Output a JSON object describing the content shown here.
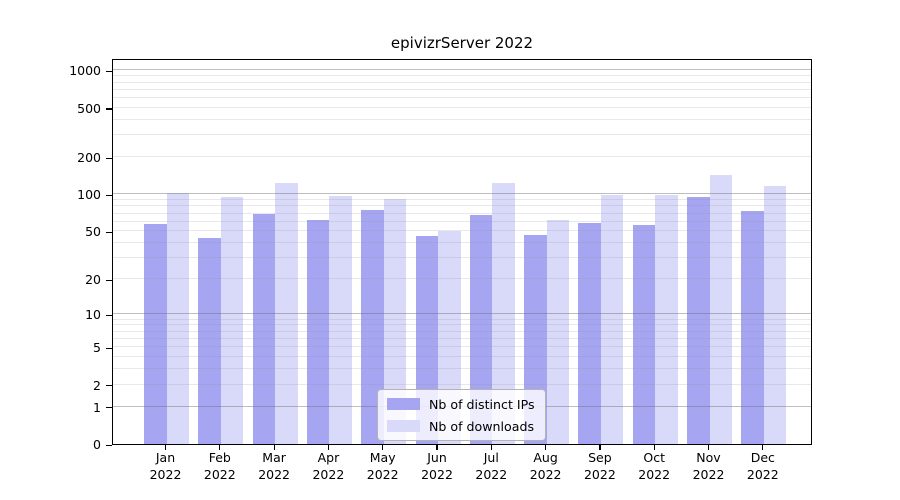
{
  "title": "epivizrServer 2022",
  "chart_data": {
    "type": "bar",
    "title": "epivizrServer 2022",
    "xlabel": "",
    "ylabel": "",
    "yscale": "log10(value+1)",
    "yticks": [
      0,
      1,
      2,
      5,
      10,
      20,
      50,
      100,
      200,
      500,
      1000
    ],
    "ylim": [
      0,
      1260
    ],
    "grid": "horizontal, major decades darker + log minors lighter, drawn over bars",
    "legend_position": "lower center inside plot",
    "year": "2022",
    "categories": [
      "Jan 2022",
      "Feb 2022",
      "Mar 2022",
      "Apr 2022",
      "May 2022",
      "Jun 2022",
      "Jul 2022",
      "Aug 2022",
      "Sep 2022",
      "Oct 2022",
      "Nov 2022",
      "Dec 2022"
    ],
    "months": [
      {
        "month": "Jan",
        "year": "2022"
      },
      {
        "month": "Feb",
        "year": "2022"
      },
      {
        "month": "Mar",
        "year": "2022"
      },
      {
        "month": "Apr",
        "year": "2022"
      },
      {
        "month": "May",
        "year": "2022"
      },
      {
        "month": "Jun",
        "year": "2022"
      },
      {
        "month": "Jul",
        "year": "2022"
      },
      {
        "month": "Aug",
        "year": "2022"
      },
      {
        "month": "Sep",
        "year": "2022"
      },
      {
        "month": "Oct",
        "year": "2022"
      },
      {
        "month": "Nov",
        "year": "2022"
      },
      {
        "month": "Dec",
        "year": "2022"
      }
    ],
    "series": [
      {
        "name": "Nb of distinct IPs",
        "color": "#a5a5f2",
        "values": [
          58,
          44,
          70,
          62,
          75,
          46,
          68,
          47,
          59,
          57,
          96,
          74
        ]
      },
      {
        "name": "Nb of downloads",
        "color": "#d9d9f9",
        "values": [
          103,
          95,
          123,
          98,
          92,
          50,
          123,
          62,
          100,
          100,
          145,
          118
        ]
      }
    ]
  }
}
